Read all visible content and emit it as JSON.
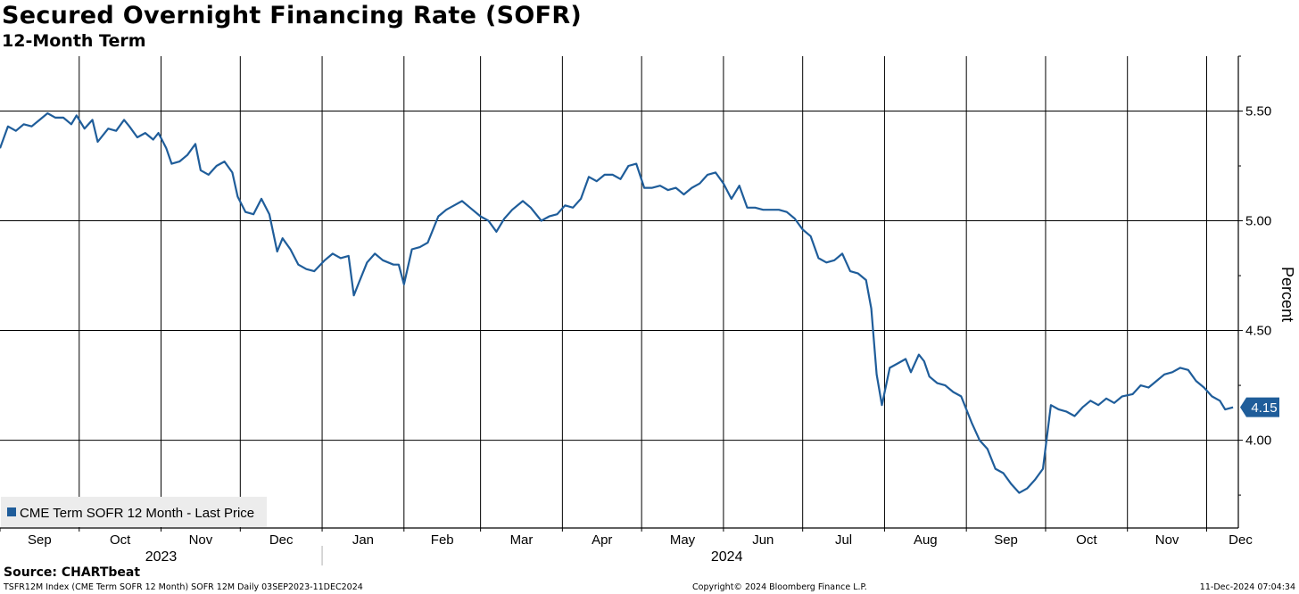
{
  "header": {
    "title": "Secured Overnight Financing Rate (SOFR)",
    "subtitle": "12-Month Term"
  },
  "footer": {
    "source": "Source: CHARTbeat",
    "ticker_info": "TSFR12M Index (CME Term SOFR 12 Month) SOFR 12M  Daily 03SEP2023-11DEC2024",
    "copyright": "Copyright© 2024 Bloomberg Finance L.P.",
    "timestamp": "11-Dec-2024 07:04:34"
  },
  "colors": {
    "line": "#1f5d9a",
    "grid": "#000000",
    "last_price_badge": "#1f5d9a",
    "legend_bg": "#ececec"
  },
  "chart_data": {
    "type": "line",
    "title": "Secured Overnight Financing Rate (SOFR)",
    "subtitle": "12-Month Term",
    "ylabel": "Percent",
    "ylim": [
      3.6,
      5.75
    ],
    "y_ticks": [
      4.0,
      4.5,
      5.0,
      5.5
    ],
    "y_tick_labels": [
      "4.00",
      "4.50",
      "5.00",
      "5.50"
    ],
    "x_ticks": [
      "2023-09-01",
      "2023-10-01",
      "2023-11-01",
      "2023-12-01",
      "2024-01-01",
      "2024-02-01",
      "2024-03-01",
      "2024-04-01",
      "2024-05-01",
      "2024-06-01",
      "2024-07-01",
      "2024-08-01",
      "2024-09-01",
      "2024-10-01",
      "2024-11-01",
      "2024-12-01"
    ],
    "month_labels": [
      "Sep",
      "Oct",
      "Nov",
      "Dec",
      "Jan",
      "Feb",
      "Mar",
      "Apr",
      "May",
      "Jun",
      "Jul",
      "Aug",
      "Sep",
      "Oct",
      "Nov",
      "Dec"
    ],
    "year_labels": [
      "2023",
      "2024"
    ],
    "x_range": [
      "2023-09-01",
      "2024-12-13"
    ],
    "grid": true,
    "legend": "bottom-left",
    "last_value_label": "4.15",
    "series": [
      {
        "name": "CME Term SOFR 12 Month - Last Price",
        "points": [
          [
            "2023-09-01",
            5.33
          ],
          [
            "2023-09-04",
            5.43
          ],
          [
            "2023-09-07",
            5.41
          ],
          [
            "2023-09-10",
            5.44
          ],
          [
            "2023-09-13",
            5.43
          ],
          [
            "2023-09-16",
            5.46
          ],
          [
            "2023-09-19",
            5.49
          ],
          [
            "2023-09-22",
            5.47
          ],
          [
            "2023-09-25",
            5.47
          ],
          [
            "2023-09-28",
            5.44
          ],
          [
            "2023-09-30",
            5.48
          ],
          [
            "2023-10-03",
            5.42
          ],
          [
            "2023-10-06",
            5.46
          ],
          [
            "2023-10-08",
            5.36
          ],
          [
            "2023-10-12",
            5.42
          ],
          [
            "2023-10-15",
            5.41
          ],
          [
            "2023-10-18",
            5.46
          ],
          [
            "2023-10-20",
            5.43
          ],
          [
            "2023-10-23",
            5.38
          ],
          [
            "2023-10-26",
            5.4
          ],
          [
            "2023-10-29",
            5.37
          ],
          [
            "2023-10-31",
            5.4
          ],
          [
            "2023-11-03",
            5.33
          ],
          [
            "2023-11-05",
            5.26
          ],
          [
            "2023-11-08",
            5.27
          ],
          [
            "2023-11-11",
            5.3
          ],
          [
            "2023-11-14",
            5.35
          ],
          [
            "2023-11-16",
            5.23
          ],
          [
            "2023-11-19",
            5.21
          ],
          [
            "2023-11-22",
            5.25
          ],
          [
            "2023-11-25",
            5.27
          ],
          [
            "2023-11-28",
            5.22
          ],
          [
            "2023-11-30",
            5.11
          ],
          [
            "2023-12-03",
            5.04
          ],
          [
            "2023-12-06",
            5.03
          ],
          [
            "2023-12-09",
            5.1
          ],
          [
            "2023-12-12",
            5.03
          ],
          [
            "2023-12-15",
            4.86
          ],
          [
            "2023-12-17",
            4.92
          ],
          [
            "2023-12-20",
            4.87
          ],
          [
            "2023-12-23",
            4.8
          ],
          [
            "2023-12-26",
            4.78
          ],
          [
            "2023-12-29",
            4.77
          ],
          [
            "2024-01-02",
            4.82
          ],
          [
            "2024-01-05",
            4.85
          ],
          [
            "2024-01-08",
            4.83
          ],
          [
            "2024-01-11",
            4.84
          ],
          [
            "2024-01-13",
            4.66
          ],
          [
            "2024-01-15",
            4.72
          ],
          [
            "2024-01-18",
            4.81
          ],
          [
            "2024-01-21",
            4.85
          ],
          [
            "2024-01-24",
            4.82
          ],
          [
            "2024-01-28",
            4.8
          ],
          [
            "2024-01-30",
            4.8
          ],
          [
            "2024-02-01",
            4.71
          ],
          [
            "2024-02-04",
            4.87
          ],
          [
            "2024-02-07",
            4.88
          ],
          [
            "2024-02-10",
            4.9
          ],
          [
            "2024-02-14",
            5.02
          ],
          [
            "2024-02-17",
            5.05
          ],
          [
            "2024-02-20",
            5.07
          ],
          [
            "2024-02-23",
            5.09
          ],
          [
            "2024-02-26",
            5.06
          ],
          [
            "2024-03-01",
            5.02
          ],
          [
            "2024-03-04",
            5.0
          ],
          [
            "2024-03-07",
            4.95
          ],
          [
            "2024-03-10",
            5.01
          ],
          [
            "2024-03-13",
            5.05
          ],
          [
            "2024-03-17",
            5.09
          ],
          [
            "2024-03-20",
            5.06
          ],
          [
            "2024-03-24",
            5.0
          ],
          [
            "2024-03-27",
            5.02
          ],
          [
            "2024-03-30",
            5.03
          ],
          [
            "2024-04-02",
            5.07
          ],
          [
            "2024-04-05",
            5.06
          ],
          [
            "2024-04-08",
            5.1
          ],
          [
            "2024-04-11",
            5.2
          ],
          [
            "2024-04-14",
            5.18
          ],
          [
            "2024-04-17",
            5.21
          ],
          [
            "2024-04-20",
            5.21
          ],
          [
            "2024-04-23",
            5.19
          ],
          [
            "2024-04-26",
            5.25
          ],
          [
            "2024-04-29",
            5.26
          ],
          [
            "2024-05-02",
            5.15
          ],
          [
            "2024-05-05",
            5.15
          ],
          [
            "2024-05-08",
            5.16
          ],
          [
            "2024-05-11",
            5.14
          ],
          [
            "2024-05-14",
            5.15
          ],
          [
            "2024-05-17",
            5.12
          ],
          [
            "2024-05-20",
            5.15
          ],
          [
            "2024-05-23",
            5.17
          ],
          [
            "2024-05-26",
            5.21
          ],
          [
            "2024-05-29",
            5.22
          ],
          [
            "2024-06-01",
            5.17
          ],
          [
            "2024-06-04",
            5.1
          ],
          [
            "2024-06-07",
            5.16
          ],
          [
            "2024-06-10",
            5.06
          ],
          [
            "2024-06-13",
            5.06
          ],
          [
            "2024-06-16",
            5.05
          ],
          [
            "2024-06-19",
            5.05
          ],
          [
            "2024-06-22",
            5.05
          ],
          [
            "2024-06-25",
            5.04
          ],
          [
            "2024-06-28",
            5.01
          ],
          [
            "2024-07-01",
            4.96
          ],
          [
            "2024-07-04",
            4.93
          ],
          [
            "2024-07-07",
            4.83
          ],
          [
            "2024-07-10",
            4.81
          ],
          [
            "2024-07-13",
            4.82
          ],
          [
            "2024-07-16",
            4.85
          ],
          [
            "2024-07-19",
            4.77
          ],
          [
            "2024-07-22",
            4.76
          ],
          [
            "2024-07-25",
            4.73
          ],
          [
            "2024-07-27",
            4.6
          ],
          [
            "2024-07-29",
            4.3
          ],
          [
            "2024-07-31",
            4.16
          ],
          [
            "2024-08-03",
            4.33
          ],
          [
            "2024-08-06",
            4.35
          ],
          [
            "2024-08-09",
            4.37
          ],
          [
            "2024-08-11",
            4.31
          ],
          [
            "2024-08-14",
            4.39
          ],
          [
            "2024-08-16",
            4.36
          ],
          [
            "2024-08-18",
            4.29
          ],
          [
            "2024-08-21",
            4.26
          ],
          [
            "2024-08-24",
            4.25
          ],
          [
            "2024-08-27",
            4.22
          ],
          [
            "2024-08-30",
            4.2
          ],
          [
            "2024-09-03",
            4.08
          ],
          [
            "2024-09-06",
            4.0
          ],
          [
            "2024-09-09",
            3.96
          ],
          [
            "2024-09-12",
            3.87
          ],
          [
            "2024-09-15",
            3.85
          ],
          [
            "2024-09-18",
            3.8
          ],
          [
            "2024-09-21",
            3.76
          ],
          [
            "2024-09-24",
            3.78
          ],
          [
            "2024-09-27",
            3.82
          ],
          [
            "2024-09-30",
            3.87
          ],
          [
            "2024-10-03",
            4.16
          ],
          [
            "2024-10-06",
            4.14
          ],
          [
            "2024-10-09",
            4.13
          ],
          [
            "2024-10-12",
            4.11
          ],
          [
            "2024-10-15",
            4.15
          ],
          [
            "2024-10-18",
            4.18
          ],
          [
            "2024-10-21",
            4.16
          ],
          [
            "2024-10-24",
            4.19
          ],
          [
            "2024-10-27",
            4.17
          ],
          [
            "2024-10-30",
            4.2
          ],
          [
            "2024-11-03",
            4.21
          ],
          [
            "2024-11-06",
            4.25
          ],
          [
            "2024-11-09",
            4.24
          ],
          [
            "2024-11-12",
            4.27
          ],
          [
            "2024-11-15",
            4.3
          ],
          [
            "2024-11-18",
            4.31
          ],
          [
            "2024-11-21",
            4.33
          ],
          [
            "2024-11-24",
            4.32
          ],
          [
            "2024-11-27",
            4.27
          ],
          [
            "2024-11-30",
            4.24
          ],
          [
            "2024-12-03",
            4.2
          ],
          [
            "2024-12-06",
            4.18
          ],
          [
            "2024-12-08",
            4.14
          ],
          [
            "2024-12-11",
            4.15
          ]
        ]
      }
    ]
  }
}
